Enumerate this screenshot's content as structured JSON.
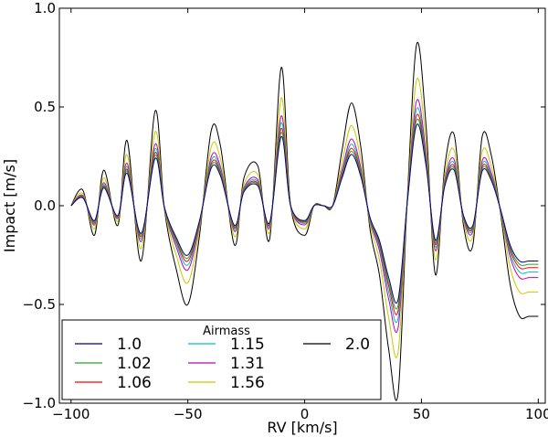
{
  "chart_data": {
    "type": "line",
    "title": "",
    "xlabel": "RV [km/s]",
    "ylabel": "Impact [m/s]",
    "xlim": [
      -105,
      103
    ],
    "ylim": [
      -1.0,
      1.0
    ],
    "xticks": [
      -100,
      -50,
      0,
      50,
      100
    ],
    "xtick_labels": [
      "−100",
      "−50",
      "0",
      "50",
      "100"
    ],
    "yticks": [
      -1.0,
      -0.5,
      0.0,
      0.5,
      1.0
    ],
    "ytick_labels": [
      "−1.0",
      "−0.5",
      "0.0",
      "0.5",
      "1.0"
    ],
    "grid": false,
    "legend_title": "Airmass",
    "legend_placement": "lower-left",
    "x": [
      -100,
      -95,
      -90,
      -86,
      -80,
      -76,
      -70,
      -64,
      -60,
      -55,
      -50,
      -45,
      -40,
      -36,
      -30,
      -26,
      -20,
      -15,
      -10,
      -6,
      0,
      4,
      8,
      12,
      16,
      20,
      24,
      28,
      32,
      36,
      40,
      44,
      48,
      52,
      56,
      60,
      64,
      68,
      72,
      76,
      80,
      84,
      88,
      92,
      96,
      100
    ],
    "base_shape": [
      0.0,
      0.08,
      -0.15,
      0.18,
      -0.1,
      0.33,
      -0.28,
      0.48,
      -0.02,
      -0.32,
      -0.5,
      -0.15,
      0.38,
      0.3,
      -0.2,
      0.14,
      0.2,
      -0.17,
      0.7,
      0.0,
      -0.15,
      0.0,
      0.0,
      0.0,
      0.28,
      0.52,
      0.3,
      -0.12,
      -0.35,
      -0.73,
      -0.95,
      0.05,
      0.82,
      0.4,
      -0.35,
      0.2,
      0.36,
      -0.1,
      -0.2,
      0.35,
      0.25,
      -0.05,
      -0.4,
      -0.56,
      -0.56,
      -0.56
    ],
    "series": [
      {
        "name": "1.0",
        "color": "#00008b",
        "scale": 0.5
      },
      {
        "name": "1.02",
        "color": "#2ca02c",
        "scale": 0.53
      },
      {
        "name": "1.06",
        "color": "#ff0000",
        "scale": 0.56
      },
      {
        "name": "1.15",
        "color": "#00bfbf",
        "scale": 0.6
      },
      {
        "name": "1.31",
        "color": "#bf00bf",
        "scale": 0.65
      },
      {
        "name": "1.56",
        "color": "#c8c800",
        "scale": 0.78
      },
      {
        "name": "2.0",
        "color": "#000000",
        "scale": 1.0
      }
    ]
  }
}
